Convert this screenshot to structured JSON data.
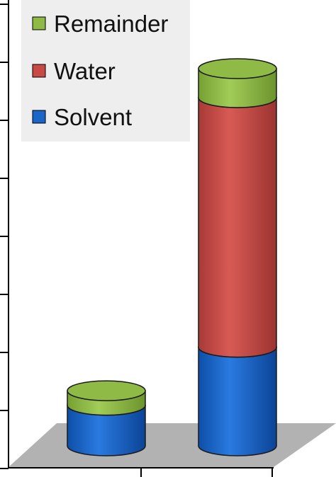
{
  "chart_data": {
    "type": "bar",
    "stacked": true,
    "three_d": true,
    "categories": [
      "",
      ""
    ],
    "series": [
      {
        "name": "Solvent",
        "color": "#1a66c8",
        "values": [
          0.7,
          1.7
        ]
      },
      {
        "name": "Water",
        "color": "#c84a45",
        "values": [
          0.0,
          4.3
        ]
      },
      {
        "name": "Remainder",
        "color": "#8fba45",
        "values": [
          0.25,
          0.5
        ]
      }
    ],
    "ylim": [
      0,
      8
    ],
    "title": "",
    "xlabel": "",
    "ylabel": "",
    "legend": {
      "position": "top-left",
      "order": [
        "Remainder",
        "Water",
        "Solvent"
      ]
    }
  }
}
